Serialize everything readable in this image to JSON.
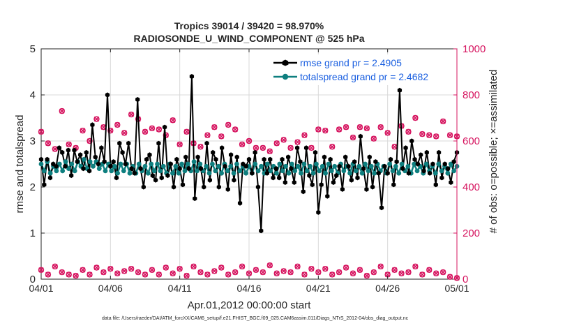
{
  "chart_data": {
    "type": "line",
    "title_line1": "Tropics 39014 / 39420 = 98.970%",
    "title_line2": "RADIOSONDE_U_WIND_COMPONENT @ 525 hPa",
    "xlabel": "Apr.01,2012 00:00:00 start",
    "ylabel_left": "rmse and totalspread",
    "ylabel_right": "# of obs: o=possible; ×=assimilated",
    "footer": "data file: /Users/raeder/DAI/ATM_forcXX/CAM6_setup/f.e21.FHIST_BGC.f09_025.CAM6assim.011/Diags_NTrS_2012-04/obs_diag_output.nc",
    "xlim": [
      0,
      30
    ],
    "ylim_left": [
      0,
      5
    ],
    "ylim_right": [
      0,
      1000
    ],
    "x_ticks": [
      0,
      5,
      10,
      15,
      20,
      25,
      30
    ],
    "x_tick_labels": [
      "04/01",
      "04/06",
      "04/11",
      "04/16",
      "04/21",
      "04/26",
      "05/01"
    ],
    "y_left_ticks": [
      "0",
      "1",
      "2",
      "3",
      "4",
      "5"
    ],
    "y_right_ticks": [
      "0",
      "200",
      "400",
      "600",
      "800",
      "1000"
    ],
    "colors": {
      "rmse": "#000000",
      "spread": "#0e7f7f",
      "obs": "#d6145f",
      "legend_text": "#1a5fe0"
    },
    "legend": [
      {
        "label": "rmse grand pr = 2.4905",
        "series": "rmse"
      },
      {
        "label": "totalspread grand pr = 2.4682",
        "series": "spread"
      }
    ],
    "series": [
      {
        "name": "rmse",
        "axis": "left",
        "values": [
          2.6,
          2.05,
          2.6,
          2.2,
          2.5,
          2.45,
          2.85,
          2.75,
          2.45,
          2.8,
          2.25,
          2.8,
          2.55,
          2.7,
          2.4,
          2.75,
          2.35,
          3.35,
          2.65,
          2.5,
          2.85,
          2.55,
          4.0,
          2.45,
          2.55,
          2.2,
          2.95,
          2.75,
          2.5,
          2.95,
          2.4,
          2.3,
          3.9,
          2.4,
          2.0,
          2.6,
          2.7,
          2.25,
          2.15,
          2.95,
          2.2,
          3.3,
          2.25,
          2.5,
          2.0,
          2.6,
          2.4,
          2.05,
          2.65,
          2.4,
          4.4,
          1.75,
          2.65,
          2.4,
          2.0,
          2.95,
          2.15,
          2.75,
          2.6,
          2.0,
          2.85,
          2.45,
          1.95,
          2.7,
          2.15,
          2.65,
          1.65,
          2.5,
          2.45,
          2.6,
          2.3,
          2.75,
          2.0,
          1.05,
          2.6,
          2.3,
          2.6,
          2.2,
          2.4,
          2.2,
          2.6,
          2.1,
          2.65,
          2.4,
          2.1,
          2.85,
          2.55,
          1.9,
          2.85,
          2.25,
          2.05,
          2.75,
          1.45,
          2.05,
          2.65,
          1.8,
          2.6,
          2.1,
          2.25,
          2.45,
          1.95,
          2.65,
          2.45,
          2.15,
          2.55,
          2.2,
          3.1,
          2.4,
          1.95,
          2.65,
          2.0,
          2.55,
          2.3,
          1.55,
          2.45,
          2.3,
          2.6,
          2.05,
          2.55,
          4.1,
          2.4,
          2.85,
          2.3,
          3.0,
          2.6,
          2.5,
          2.7,
          2.35,
          2.75,
          2.3,
          2.5,
          2.05,
          2.75,
          2.2,
          2.5,
          2.4,
          2.1,
          2.55,
          2.75
        ]
      },
      {
        "name": "totalspread",
        "axis": "left",
        "values": [
          2.5,
          2.35,
          2.55,
          2.3,
          2.45,
          2.35,
          2.5,
          2.35,
          2.55,
          2.4,
          2.5,
          2.35,
          2.55,
          2.45,
          2.6,
          2.4,
          2.55,
          2.45,
          2.55,
          2.4,
          2.5,
          2.35,
          2.5,
          2.35,
          2.45,
          2.3,
          2.5,
          2.35,
          2.5,
          2.3,
          2.45,
          2.3,
          2.5,
          2.35,
          2.45,
          2.3,
          2.5,
          2.35,
          2.5,
          2.35,
          2.45,
          2.3,
          2.5,
          2.3,
          2.45,
          2.3,
          2.5,
          2.35,
          2.5,
          2.35,
          2.55,
          2.35,
          2.5,
          2.35,
          2.45,
          2.3,
          2.5,
          2.35,
          2.45,
          2.3,
          2.5,
          2.35,
          2.45,
          2.3,
          2.5,
          2.35,
          2.45,
          2.3,
          2.45,
          2.3,
          2.5,
          2.35,
          2.45,
          2.3,
          2.5,
          2.35,
          2.45,
          2.3,
          2.5,
          2.35,
          2.45,
          2.3,
          2.5,
          2.35,
          2.45,
          2.3,
          2.5,
          2.35,
          2.45,
          2.3,
          2.5,
          2.35,
          2.45,
          2.3,
          2.5,
          2.35,
          2.45,
          2.3,
          2.5,
          2.35,
          2.45,
          2.3,
          2.5,
          2.35,
          2.45,
          2.3,
          2.5,
          2.35,
          2.45,
          2.3,
          2.5,
          2.35,
          2.45,
          2.3,
          2.5,
          2.35,
          2.45,
          2.3,
          2.5,
          2.35,
          2.45,
          2.3,
          2.5,
          2.35,
          2.45,
          2.3,
          2.5,
          2.35,
          2.45,
          2.3,
          2.5,
          2.35,
          2.45,
          2.3,
          2.5,
          2.35,
          2.45
        ]
      },
      {
        "name": "obs_possible",
        "axis": "right",
        "x": [
          0,
          0.5,
          1,
          1.5,
          2,
          2.5,
          3,
          3.5,
          4,
          4.5,
          5,
          5.5,
          6,
          6.5,
          7,
          7.5,
          8,
          8.5,
          9,
          9.5,
          10,
          10.5,
          11,
          11.5,
          12,
          12.5,
          13,
          13.5,
          14,
          14.5,
          15,
          15.5,
          16,
          16.5,
          17,
          17.5,
          18,
          18.5,
          19,
          19.5,
          20,
          20.5,
          21,
          21.5,
          22,
          22.5,
          23,
          23.5,
          24,
          24.5,
          25,
          25.5,
          26,
          26.5,
          27,
          27.5,
          28,
          28.5,
          29,
          29.5,
          30
        ],
        "values": [
          640,
          590,
          565,
          730,
          585,
          570,
          645,
          600,
          695,
          660,
          645,
          670,
          635,
          715,
          695,
          640,
          655,
          650,
          625,
          690,
          585,
          640,
          590,
          575,
          625,
          660,
          620,
          670,
          650,
          585,
          600,
          570,
          570,
          555,
          590,
          605,
          570,
          595,
          625,
          570,
          650,
          645,
          575,
          650,
          660,
          615,
          660,
          655,
          610,
          660,
          635,
          575,
          665,
          640,
          700,
          630,
          625,
          620,
          685,
          625,
          620
        ]
      },
      {
        "name": "obs_assimilated",
        "axis": "right",
        "x": [
          0,
          0.5,
          1,
          1.5,
          2,
          2.5,
          3,
          3.5,
          4,
          4.5,
          5,
          5.5,
          6,
          6.5,
          7,
          7.5,
          8,
          8.5,
          9,
          9.5,
          10,
          10.5,
          11,
          11.5,
          12,
          12.5,
          13,
          13.5,
          14,
          14.5,
          15,
          15.5,
          16,
          16.5,
          17,
          17.5,
          18,
          18.5,
          19,
          19.5,
          20,
          20.5,
          21,
          21.5,
          22,
          22.5,
          23,
          23.5,
          24,
          24.5,
          25,
          25.5,
          26,
          26.5,
          27,
          27.5,
          28,
          28.5,
          29,
          29.5,
          30
        ],
        "values": [
          40,
          20,
          55,
          30,
          20,
          15,
          40,
          20,
          50,
          30,
          45,
          25,
          35,
          45,
          30,
          20,
          40,
          20,
          50,
          25,
          45,
          15,
          55,
          30,
          20,
          35,
          50,
          20,
          30,
          55,
          25,
          40,
          30,
          60,
          25,
          35,
          30,
          55,
          20,
          45,
          30,
          45,
          20,
          30,
          50,
          25,
          40,
          15,
          30,
          55,
          20,
          40,
          25,
          30,
          55,
          20,
          40,
          25,
          30,
          10,
          5
        ]
      }
    ]
  }
}
